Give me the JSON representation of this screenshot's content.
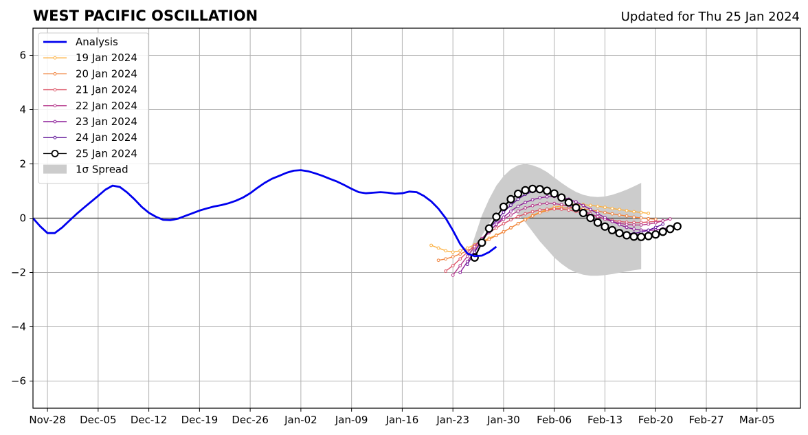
{
  "chart_data": {
    "type": "line",
    "title": "WEST PACIFIC OSCILLATION",
    "subtitle": "Updated for Thu 25 Jan 2024",
    "xlabel": "",
    "ylabel": "",
    "xlim": [
      "2023-11-26",
      "2024-03-11"
    ],
    "ylim": [
      -7,
      7
    ],
    "grid": true,
    "legend_position": "top-left",
    "x_ticks": [
      "Nov-28",
      "Dec-05",
      "Dec-12",
      "Dec-19",
      "Dec-26",
      "Jan-02",
      "Jan-09",
      "Jan-16",
      "Jan-23",
      "Jan-30",
      "Feb-06",
      "Feb-13",
      "Feb-20",
      "Feb-27",
      "Mar-05"
    ],
    "y_ticks": [
      "6",
      "4",
      "2",
      "0",
      "−2",
      "−4",
      "−6"
    ],
    "analysis": {
      "name": "Analysis",
      "color": "#0000ee",
      "start": "2023-11-26",
      "values": [
        0.0,
        -0.3,
        -0.55,
        -0.55,
        -0.35,
        -0.1,
        0.15,
        0.38,
        0.6,
        0.82,
        1.05,
        1.2,
        1.15,
        0.95,
        0.7,
        0.42,
        0.2,
        0.05,
        -0.06,
        -0.07,
        -0.02,
        0.08,
        0.18,
        0.28,
        0.36,
        0.43,
        0.48,
        0.55,
        0.64,
        0.76,
        0.92,
        1.12,
        1.3,
        1.45,
        1.56,
        1.67,
        1.75,
        1.77,
        1.73,
        1.65,
        1.56,
        1.45,
        1.35,
        1.22,
        1.08,
        0.96,
        0.92,
        0.94,
        0.96,
        0.94,
        0.9,
        0.92,
        0.98,
        0.96,
        0.82,
        0.62,
        0.35,
        0.0,
        -0.45,
        -0.95,
        -1.3,
        -1.4,
        -1.38,
        -1.25,
        -1.05
      ]
    },
    "spread": {
      "name": "1σ Spread",
      "color": "#cccccc",
      "start": "2024-01-25",
      "upper": [
        -1.5,
        -0.7,
        0.1,
        0.7,
        1.2,
        1.55,
        1.8,
        1.95,
        2.0,
        1.95,
        1.85,
        1.7,
        1.5,
        1.3,
        1.12,
        0.97,
        0.86,
        0.8,
        0.78,
        0.8,
        0.86,
        0.95,
        1.05,
        1.17,
        1.3
      ],
      "lower": [
        -1.5,
        -1.1,
        -0.65,
        -0.2,
        0.2,
        0.4,
        0.35,
        0.15,
        -0.15,
        -0.5,
        -0.85,
        -1.15,
        -1.45,
        -1.68,
        -1.87,
        -2.0,
        -2.08,
        -2.12,
        -2.12,
        -2.1,
        -2.06,
        -2.01,
        -1.96,
        -1.92,
        -1.88
      ]
    },
    "series": [
      {
        "name": "19 Jan 2024",
        "color": "#fcb03f",
        "start": "2024-01-20",
        "values": [
          -1.0,
          -1.1,
          -1.2,
          -1.25,
          -1.2,
          -1.1,
          -0.98,
          -0.86,
          -0.74,
          -0.62,
          -0.5,
          -0.36,
          -0.2,
          -0.04,
          0.1,
          0.22,
          0.32,
          0.4,
          0.46,
          0.5,
          0.51,
          0.5,
          0.47,
          0.44,
          0.4,
          0.36,
          0.32,
          0.28,
          0.24,
          0.21,
          0.18
        ]
      },
      {
        "name": "20 Jan 2024",
        "color": "#f0823c",
        "start": "2024-01-21",
        "values": [
          -1.55,
          -1.5,
          -1.42,
          -1.32,
          -1.2,
          -1.06,
          -0.92,
          -0.78,
          -0.64,
          -0.5,
          -0.35,
          -0.2,
          -0.06,
          0.08,
          0.2,
          0.28,
          0.34,
          0.37,
          0.38,
          0.37,
          0.34,
          0.3,
          0.26,
          0.21,
          0.16,
          0.12,
          0.08,
          0.04,
          0.01,
          -0.02,
          -0.04
        ]
      },
      {
        "name": "21 Jan 2024",
        "color": "#dc5366",
        "start": "2024-01-22",
        "values": [
          -1.95,
          -1.75,
          -1.5,
          -1.25,
          -1.0,
          -0.76,
          -0.54,
          -0.36,
          -0.2,
          -0.06,
          0.06,
          0.16,
          0.24,
          0.3,
          0.33,
          0.34,
          0.33,
          0.3,
          0.25,
          0.19,
          0.12,
          0.05,
          -0.02,
          -0.08,
          -0.12,
          -0.15,
          -0.16,
          -0.16,
          -0.14,
          -0.12,
          -0.1
        ]
      },
      {
        "name": "22 Jan 2024",
        "color": "#b6398c",
        "start": "2024-01-23",
        "values": [
          -2.1,
          -1.75,
          -1.4,
          -1.05,
          -0.75,
          -0.48,
          -0.24,
          -0.04,
          0.12,
          0.26,
          0.38,
          0.46,
          0.52,
          0.55,
          0.54,
          0.5,
          0.44,
          0.36,
          0.26,
          0.16,
          0.06,
          -0.04,
          -0.12,
          -0.19,
          -0.23,
          -0.25,
          -0.25,
          -0.22,
          -0.17,
          -0.1,
          -0.03
        ]
      },
      {
        "name": "23 Jan 2024",
        "color": "#8c1c99",
        "start": "2024-01-24",
        "values": [
          -2.0,
          -1.6,
          -1.2,
          -0.82,
          -0.5,
          -0.22,
          0.04,
          0.26,
          0.44,
          0.58,
          0.68,
          0.75,
          0.79,
          0.8,
          0.77,
          0.7,
          0.6,
          0.47,
          0.32,
          0.17,
          0.02,
          -0.12,
          -0.24,
          -0.34,
          -0.4,
          -0.44,
          -0.45,
          -0.43,
          -0.39,
          -0.33,
          -0.26
        ]
      },
      {
        "name": "24 Jan 2024",
        "color": "#5c0f96",
        "start": "2024-01-25",
        "values": [
          -1.7,
          -1.25,
          -0.82,
          -0.42,
          -0.08,
          0.22,
          0.48,
          0.7,
          0.88,
          0.98,
          1.02,
          0.98,
          0.88,
          0.74,
          0.57,
          0.38,
          0.18,
          -0.02,
          -0.2,
          -0.35,
          -0.46,
          -0.54,
          -0.57,
          -0.56,
          -0.52,
          -0.44,
          -0.34,
          -0.22
        ]
      },
      {
        "name": "25 Jan 2024",
        "color": "#000000",
        "start": "2024-01-26",
        "values": [
          -1.45,
          -0.9,
          -0.38,
          0.05,
          0.42,
          0.7,
          0.9,
          1.03,
          1.08,
          1.07,
          1.01,
          0.91,
          0.76,
          0.58,
          0.39,
          0.19,
          0.01,
          -0.16,
          -0.31,
          -0.44,
          -0.55,
          -0.63,
          -0.68,
          -0.69,
          -0.66,
          -0.6,
          -0.5,
          -0.4,
          -0.3
        ]
      }
    ]
  }
}
